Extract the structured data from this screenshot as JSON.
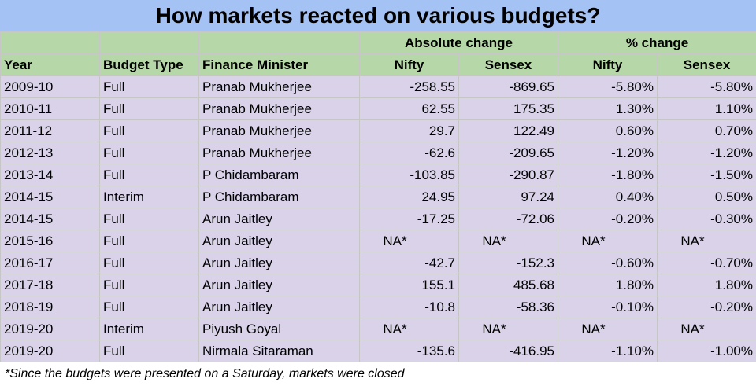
{
  "title": "How markets reacted on various budgets?",
  "header": {
    "absolute_change": "Absolute change",
    "percent_change": "% change",
    "year": "Year",
    "budget_type": "Budget Type",
    "finance_minister": "Finance Minister",
    "nifty": "Nifty",
    "sensex": "Sensex"
  },
  "rows": [
    {
      "year": "2009-10",
      "type": "Full",
      "minister": "Pranab Mukherjee",
      "abs_nifty": "-258.55",
      "abs_sensex": "-869.65",
      "pct_nifty": "-5.80%",
      "pct_sensex": "-5.80%"
    },
    {
      "year": "2010-11",
      "type": "Full",
      "minister": "Pranab Mukherjee",
      "abs_nifty": "62.55",
      "abs_sensex": "175.35",
      "pct_nifty": "1.30%",
      "pct_sensex": "1.10%"
    },
    {
      "year": "2011-12",
      "type": "Full",
      "minister": "Pranab Mukherjee",
      "abs_nifty": "29.7",
      "abs_sensex": "122.49",
      "pct_nifty": "0.60%",
      "pct_sensex": "0.70%"
    },
    {
      "year": "2012-13",
      "type": "Full",
      "minister": "Pranab Mukherjee",
      "abs_nifty": "-62.6",
      "abs_sensex": "-209.65",
      "pct_nifty": "-1.20%",
      "pct_sensex": "-1.20%"
    },
    {
      "year": "2013-14",
      "type": "Full",
      "minister": "P Chidambaram",
      "abs_nifty": "-103.85",
      "abs_sensex": "-290.87",
      "pct_nifty": "-1.80%",
      "pct_sensex": "-1.50%"
    },
    {
      "year": "2014-15",
      "type": "Interim",
      "minister": "P Chidambaram",
      "abs_nifty": "24.95",
      "abs_sensex": "97.24",
      "pct_nifty": "0.40%",
      "pct_sensex": "0.50%"
    },
    {
      "year": "2014-15",
      "type": "Full",
      "minister": "Arun Jaitley",
      "abs_nifty": "-17.25",
      "abs_sensex": "-72.06",
      "pct_nifty": "-0.20%",
      "pct_sensex": "-0.30%"
    },
    {
      "year": "2015-16",
      "type": "Full",
      "minister": "Arun Jaitley",
      "abs_nifty": "NA*",
      "abs_sensex": "NA*",
      "pct_nifty": "NA*",
      "pct_sensex": "NA*"
    },
    {
      "year": "2016-17",
      "type": "Full",
      "minister": "Arun Jaitley",
      "abs_nifty": "-42.7",
      "abs_sensex": "-152.3",
      "pct_nifty": "-0.60%",
      "pct_sensex": "-0.70%"
    },
    {
      "year": "2017-18",
      "type": "Full",
      "minister": "Arun Jaitley",
      "abs_nifty": "155.1",
      "abs_sensex": "485.68",
      "pct_nifty": "1.80%",
      "pct_sensex": "1.80%"
    },
    {
      "year": "2018-19",
      "type": "Full",
      "minister": "Arun Jaitley",
      "abs_nifty": "-10.8",
      "abs_sensex": "-58.36",
      "pct_nifty": "-0.10%",
      "pct_sensex": "-0.20%"
    },
    {
      "year": "2019-20",
      "type": "Interim",
      "minister": "Piyush Goyal",
      "abs_nifty": "NA*",
      "abs_sensex": "NA*",
      "pct_nifty": "NA*",
      "pct_sensex": "NA*"
    },
    {
      "year": "2019-20",
      "type": "Full",
      "minister": "Nirmala Sitaraman",
      "abs_nifty": "-135.6",
      "abs_sensex": "-416.95",
      "pct_nifty": "-1.10%",
      "pct_sensex": "-1.00%"
    }
  ],
  "footnote": "*Since the budgets were presented on a Saturday, markets were closed"
}
